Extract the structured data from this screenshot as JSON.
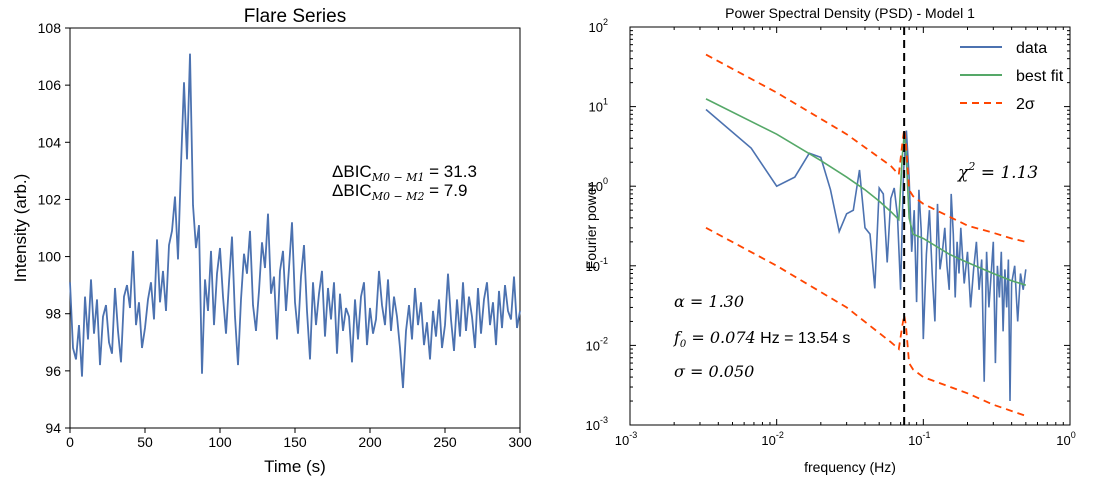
{
  "chart_data": [
    {
      "type": "line",
      "title": "Flare Series",
      "xlabel": "Time (s)",
      "ylabel": "Intensity (arb.)",
      "xlim": [
        0,
        300
      ],
      "ylim": [
        94,
        108
      ],
      "xticks": [
        0,
        50,
        100,
        150,
        200,
        250,
        300
      ],
      "yticks": [
        94,
        96,
        98,
        100,
        102,
        104,
        106,
        108
      ],
      "grid": false,
      "series": [
        {
          "color": "#4c72b0",
          "x": [
            0,
            2,
            4,
            6,
            8,
            10,
            12,
            14,
            16,
            18,
            20,
            22,
            24,
            26,
            28,
            30,
            32,
            34,
            36,
            38,
            40,
            42,
            44,
            46,
            48,
            50,
            52,
            54,
            56,
            58,
            60,
            62,
            64,
            66,
            68,
            70,
            72,
            74,
            76,
            78,
            80,
            82,
            84,
            86,
            88,
            90,
            92,
            94,
            96,
            98,
            100,
            102,
            104,
            106,
            108,
            110,
            112,
            114,
            116,
            118,
            120,
            122,
            124,
            126,
            128,
            130,
            132,
            134,
            136,
            138,
            140,
            142,
            144,
            146,
            148,
            150,
            152,
            154,
            156,
            158,
            160,
            162,
            164,
            166,
            168,
            170,
            172,
            174,
            176,
            178,
            180,
            182,
            184,
            186,
            188,
            190,
            192,
            194,
            196,
            198,
            200,
            202,
            204,
            206,
            208,
            210,
            212,
            214,
            216,
            218,
            220,
            222,
            224,
            226,
            228,
            230,
            232,
            234,
            236,
            238,
            240,
            242,
            244,
            246,
            248,
            250,
            252,
            254,
            256,
            258,
            260,
            262,
            264,
            266,
            268,
            270,
            272,
            274,
            276,
            278,
            280,
            282,
            284,
            286,
            288,
            290,
            292,
            294,
            296,
            298,
            300
          ],
          "values": [
            99.1,
            96.8,
            96.4,
            97.6,
            95.8,
            98.6,
            97.1,
            99.2,
            97.3,
            98.5,
            96.2,
            97.9,
            98.3,
            97.0,
            96.6,
            98.9,
            97.4,
            96.3,
            98.6,
            99.0,
            98.2,
            100.2,
            97.6,
            98.4,
            96.8,
            97.5,
            98.5,
            99.1,
            97.8,
            100.6,
            98.4,
            99.5,
            98.1,
            100.4,
            100.9,
            102.1,
            99.9,
            103.2,
            106.1,
            103.4,
            107.1,
            101.8,
            100.3,
            101.1,
            95.9,
            99.2,
            98.1,
            100.2,
            97.6,
            99.4,
            100.3,
            98.6,
            97.3,
            99.1,
            100.7,
            97.9,
            96.2,
            98.5,
            100.1,
            99.4,
            100.9,
            98.3,
            97.4,
            98.8,
            100.5,
            99.6,
            101.5,
            98.7,
            99.3,
            97.1,
            99.5,
            100.2,
            98.1,
            99.6,
            101.2,
            98.4,
            97.3,
            99.3,
            100.4,
            98.1,
            96.4,
            99.1,
            97.6,
            98.7,
            99.5,
            97.2,
            98.9,
            97.8,
            99.1,
            96.6,
            98.7,
            97.4,
            98.2,
            97.9,
            96.3,
            98.5,
            97.1,
            98.6,
            99.1,
            96.9,
            98.2,
            97.3,
            97.8,
            99.5,
            98.3,
            97.6,
            99.2,
            97.4,
            98.6,
            97.9,
            96.8,
            95.4,
            97.4,
            98.3,
            97.1,
            98.9,
            97.6,
            98.4,
            96.9,
            97.7,
            96.4,
            98.1,
            97.2,
            98.5,
            96.8,
            97.6,
            99.4,
            97.8,
            96.7,
            98.5,
            97.2,
            99.1,
            97.4,
            98.6,
            97.9,
            96.8,
            98.9,
            97.3,
            98.5,
            99.1,
            97.6,
            98.4,
            96.9,
            98.8,
            97.5,
            99.0,
            98.1,
            97.8,
            99.3,
            97.5,
            98.1
          ]
        }
      ],
      "annotations": [
        {
          "prefix": "ΔBIC",
          "subscript": "M0 − M1",
          "value": " = 31.3"
        },
        {
          "prefix": "ΔBIC",
          "subscript": "M0 − M2",
          "value": " = 7.9"
        }
      ]
    },
    {
      "type": "line",
      "title": "Power Spectral Density (PSD) - Model 1",
      "xlabel": "frequency (Hz)",
      "ylabel": "Fourier power",
      "xscale": "log",
      "yscale": "log",
      "xlim": [
        0.001,
        1
      ],
      "ylim": [
        0.001,
        100
      ],
      "xticks": [
        {
          "base": "10",
          "exp": "-3"
        },
        {
          "base": "10",
          "exp": "-2"
        },
        {
          "base": "10",
          "exp": "-1"
        },
        {
          "base": "10",
          "exp": "0"
        }
      ],
      "yticks": [
        {
          "base": "10",
          "exp": "-3"
        },
        {
          "base": "10",
          "exp": "-2"
        },
        {
          "base": "10",
          "exp": "-1"
        },
        {
          "base": "10",
          "exp": "0"
        },
        {
          "base": "10",
          "exp": "1"
        },
        {
          "base": "10",
          "exp": "2"
        }
      ],
      "legend_position": "top-right",
      "vline": {
        "x": 0.074,
        "color": "#000000",
        "dash": true
      },
      "series": [
        {
          "name": "data",
          "color": "#4c72b0",
          "x": [
            0.0033,
            0.0067,
            0.01,
            0.0133,
            0.0167,
            0.02,
            0.0233,
            0.0267,
            0.03,
            0.0333,
            0.0367,
            0.04,
            0.0433,
            0.0467,
            0.05,
            0.0533,
            0.0567,
            0.06,
            0.0633,
            0.0667,
            0.07,
            0.0733,
            0.0767,
            0.08,
            0.0833,
            0.0867,
            0.09,
            0.0933,
            0.0967,
            0.1,
            0.105,
            0.11,
            0.115,
            0.12,
            0.125,
            0.13,
            0.135,
            0.14,
            0.145,
            0.15,
            0.155,
            0.16,
            0.165,
            0.17,
            0.175,
            0.18,
            0.19,
            0.2,
            0.21,
            0.22,
            0.23,
            0.24,
            0.25,
            0.26,
            0.27,
            0.28,
            0.29,
            0.3,
            0.31,
            0.32,
            0.33,
            0.34,
            0.35,
            0.36,
            0.37,
            0.38,
            0.39,
            0.4,
            0.42,
            0.44,
            0.46,
            0.48,
            0.5
          ],
          "values": [
            9.2,
            3.0,
            1.0,
            1.3,
            2.6,
            2.3,
            0.9,
            0.27,
            0.45,
            0.5,
            1.6,
            0.3,
            0.25,
            0.052,
            0.95,
            0.8,
            0.11,
            0.7,
            0.95,
            0.42,
            0.05,
            1.5,
            5.0,
            1.3,
            0.15,
            0.5,
            0.035,
            0.9,
            0.28,
            0.012,
            0.14,
            0.5,
            0.08,
            0.02,
            0.6,
            0.09,
            0.15,
            0.3,
            0.1,
            0.05,
            0.8,
            0.25,
            0.04,
            0.2,
            0.08,
            0.3,
            0.06,
            0.15,
            0.03,
            0.09,
            0.2,
            0.05,
            0.12,
            0.0035,
            0.15,
            0.03,
            0.08,
            0.2,
            0.006,
            0.1,
            0.04,
            0.15,
            0.015,
            0.09,
            0.03,
            0.12,
            0.002,
            0.06,
            0.1,
            0.02,
            0.08,
            0.05,
            0.09
          ]
        },
        {
          "name": "best fit",
          "color": "#55a868",
          "x": [
            0.0033,
            0.01,
            0.02,
            0.03,
            0.04,
            0.05,
            0.06,
            0.068,
            0.072,
            0.074,
            0.076,
            0.08,
            0.085,
            0.1,
            0.15,
            0.2,
            0.3,
            0.4,
            0.5
          ],
          "values": [
            12.5,
            4.5,
            2.1,
            1.3,
            0.9,
            0.65,
            0.48,
            0.38,
            2.5,
            4.4,
            3.0,
            0.4,
            0.25,
            0.22,
            0.14,
            0.11,
            0.08,
            0.065,
            0.057
          ]
        },
        {
          "name": "2σ",
          "color": "#ff4500",
          "dash": true,
          "x": [
            0.0033,
            0.01,
            0.03,
            0.06,
            0.068,
            0.072,
            0.074,
            0.076,
            0.08,
            0.085,
            0.1,
            0.2,
            0.3,
            0.4,
            0.5
          ],
          "values": [
            45.0,
            15.0,
            4.5,
            1.8,
            1.4,
            3.5,
            5.2,
            3.5,
            0.9,
            0.75,
            0.6,
            0.32,
            0.26,
            0.22,
            0.2
          ]
        },
        {
          "name": "2σ",
          "color": "#ff4500",
          "dash": true,
          "x": [
            0.0033,
            0.01,
            0.03,
            0.06,
            0.068,
            0.072,
            0.074,
            0.076,
            0.08,
            0.085,
            0.1,
            0.2,
            0.3,
            0.4,
            0.5
          ],
          "values": [
            0.3,
            0.1,
            0.03,
            0.011,
            0.009,
            0.018,
            0.024,
            0.018,
            0.006,
            0.005,
            0.004,
            0.0025,
            0.0018,
            0.0015,
            0.0013
          ]
        }
      ],
      "annotations": [
        {
          "lhs": "χ",
          "sup": "2",
          "rhs": " = 1.13"
        },
        {
          "lhs": "α",
          "rhs": " = 1.30"
        },
        {
          "lhs": "f",
          "sub": "0",
          "rhs": " = 0.074",
          "unit": " Hz = 13.54 s"
        },
        {
          "lhs": "σ",
          "rhs": " = 0.050"
        }
      ]
    }
  ]
}
